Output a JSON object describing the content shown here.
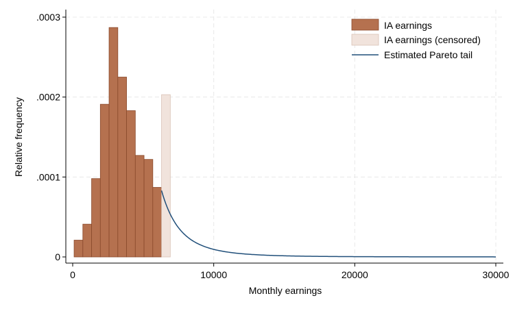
{
  "chart_data": {
    "type": "bar",
    "xlabel": "Monthly earnings",
    "ylabel": "Relative frequency",
    "xlim": [
      0,
      30000
    ],
    "ylim": [
      0,
      0.0003
    ],
    "x_ticks": [
      {
        "value": 0,
        "label": "0"
      },
      {
        "value": 10000,
        "label": "10000"
      },
      {
        "value": 20000,
        "label": "20000"
      },
      {
        "value": 30000,
        "label": "30000"
      }
    ],
    "y_ticks": [
      {
        "value": 0,
        "label": "0"
      },
      {
        "value": 0.0001,
        "label": ".0001"
      },
      {
        "value": 0.0002,
        "label": ".0002"
      },
      {
        "value": 0.0003,
        "label": ".0003"
      }
    ],
    "grid": true,
    "legend_position": "top-right",
    "colors": {
      "bars": "#b5714f",
      "bars_stroke": "#8a4a2c",
      "censored": "#f1e3dc",
      "censored_stroke": "#d9c2b6",
      "tail": "#1f4e79",
      "grid": "#e8e8e8"
    },
    "series": [
      {
        "name": "IA earnings",
        "kind": "histogram",
        "bins": [
          {
            "x0": 100,
            "x1": 720,
            "y": 2.1e-05
          },
          {
            "x0": 720,
            "x1": 1340,
            "y": 4.1e-05
          },
          {
            "x0": 1340,
            "x1": 1960,
            "y": 9.8e-05
          },
          {
            "x0": 1960,
            "x1": 2580,
            "y": 0.000191
          },
          {
            "x0": 2580,
            "x1": 3200,
            "y": 0.000287
          },
          {
            "x0": 3200,
            "x1": 3820,
            "y": 0.000225
          },
          {
            "x0": 3820,
            "x1": 4440,
            "y": 0.000183
          },
          {
            "x0": 4440,
            "x1": 5060,
            "y": 0.000127
          },
          {
            "x0": 5060,
            "x1": 5680,
            "y": 0.000122
          },
          {
            "x0": 5680,
            "x1": 6300,
            "y": 8.7e-05
          }
        ]
      },
      {
        "name": "IA earnings (censored)",
        "kind": "histogram",
        "bins": [
          {
            "x0": 6300,
            "x1": 6920,
            "y": 0.000203
          }
        ]
      },
      {
        "name": "Estimated Pareto tail",
        "kind": "line",
        "x_start": 6300,
        "x_end": 30000,
        "y_start": 8.3e-05,
        "alpha": 3.7
      }
    ]
  }
}
